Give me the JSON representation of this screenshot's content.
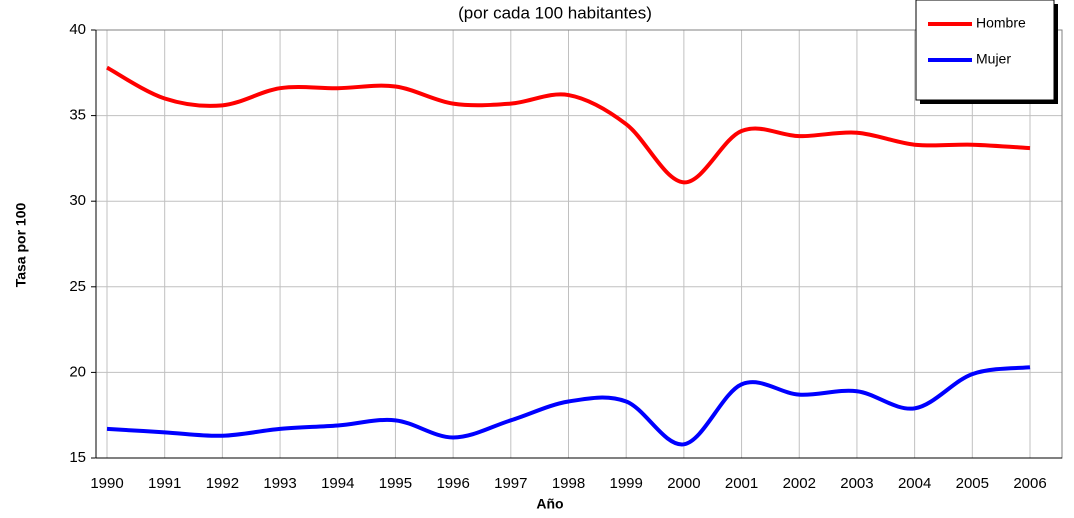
{
  "chart_data": {
    "type": "line",
    "title": "(por cada 100 habitantes)",
    "x_label": "Año",
    "y_label": "Tasa por 100",
    "categories": [
      "1990",
      "1991",
      "1992",
      "1993",
      "1994",
      "1995",
      "1996",
      "1997",
      "1998",
      "1999",
      "2000",
      "2001",
      "2002",
      "2003",
      "2004",
      "2005",
      "2006"
    ],
    "series": [
      {
        "name": "Hombre",
        "color": "#ff0000",
        "values": [
          37.8,
          36.0,
          35.6,
          36.6,
          36.6,
          36.7,
          35.7,
          35.7,
          36.2,
          34.5,
          31.1,
          34.1,
          33.8,
          34.0,
          33.3,
          33.3,
          33.1
        ]
      },
      {
        "name": "Mujer",
        "color": "#0000ff",
        "values": [
          16.7,
          16.5,
          16.3,
          16.7,
          16.9,
          17.2,
          16.2,
          17.2,
          18.3,
          18.3,
          15.8,
          19.3,
          18.7,
          18.9,
          17.9,
          19.9,
          20.3
        ]
      }
    ],
    "ylim": [
      15,
      40
    ],
    "yticks": [
      15,
      20,
      25,
      30,
      35,
      40
    ],
    "grid": true,
    "legend": "top-right"
  }
}
